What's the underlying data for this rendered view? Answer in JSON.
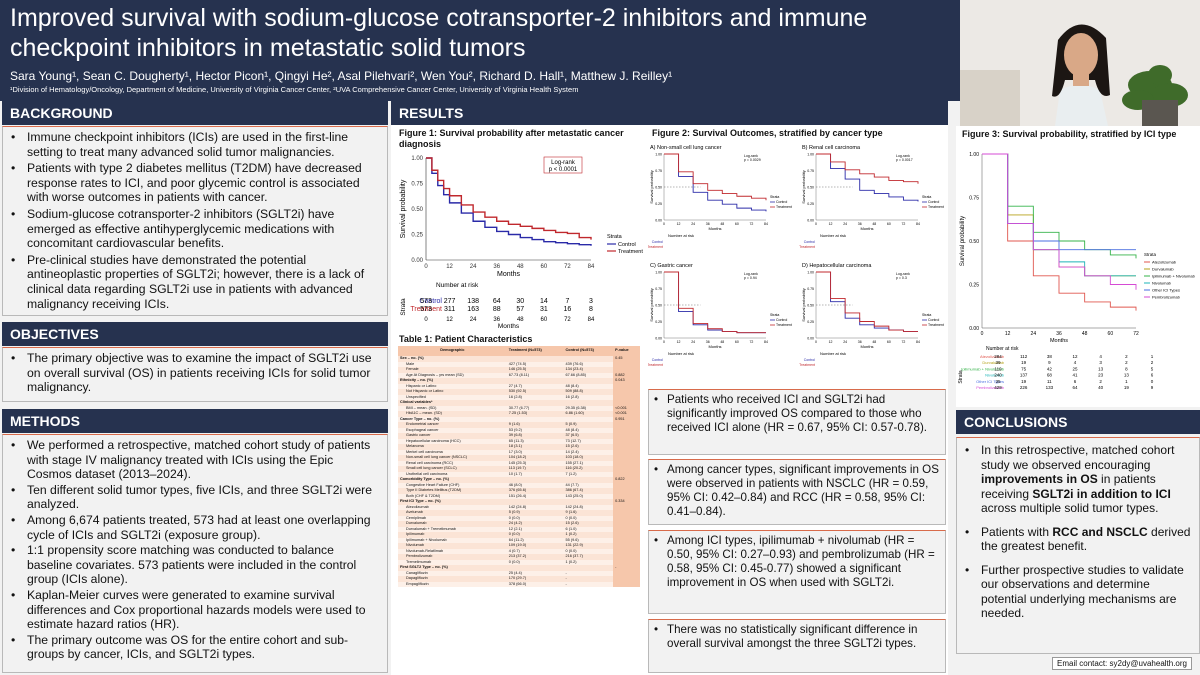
{
  "header": {
    "title": "Improved survival with sodium-glucose cotransporter-2 inhibitors and immune checkpoint inhibitors in metastatic solid tumors",
    "authors": "Sara Young¹, Sean C. Dougherty¹, Hector Picon¹, Qingyi He², Asal Pilehvari², Wen You², Richard D. Hall¹, Matthew J. Reilley¹",
    "affiliations": "¹Division of Hematology/Oncology, Department of Medicine, University of Virginia Cancer Center, ²UVA Comprehensive Cancer Center, University of Virginia Health System"
  },
  "sections": {
    "background": "BACKGROUND",
    "objectives": "OBJECTIVES",
    "methods": "METHODS",
    "results": "RESULTS",
    "conclusions": "CONCLUSIONS"
  },
  "background_items": [
    "Immune checkpoint inhibitors (ICIs) are used in the first-line setting to treat many advanced solid tumor malignancies.",
    "Patients with type 2 diabetes mellitus (T2DM) have decreased response rates to ICI, and poor glycemic control is associated with worse outcomes in patients with cancer.",
    "Sodium-glucose cotransporter-2 inhibitors (SGLT2i) have emerged as effective antihyperglycemic medications with concomitant cardiovascular benefits.",
    "Pre-clinical studies have demonstrated the potential antineoplastic properties of SGLT2i; however, there is a lack of clinical data regarding SGLT2i use in patients with advanced malignancy receiving ICIs."
  ],
  "objective_items": [
    "The primary objective was to examine the impact of SGLT2i use on overall survival (OS) in patients receiving ICIs for solid tumor malignancy."
  ],
  "method_items": [
    "We performed a retrospective, matched cohort study of patients with stage IV malignancy treated with ICIs using the Epic Cosmos dataset (2013–2024).",
    "Ten different solid tumor types, five ICIs, and three SGLT2i were analyzed.",
    "Among 6,674 patients treated, 573 had at least one overlapping cycle of ICIs and SGLT2i (exposure group).",
    "1:1 propensity score matching was conducted to balance baseline covariates. 573 patients were included in the control group (ICIs alone).",
    "Kaplan-Meier curves were generated to examine survival differences and Cox proportional hazards models were used to estimate hazard ratios (HR).",
    "The primary outcome was OS for the entire cohort and sub-groups by cancer, ICIs, and SGLT2i types."
  ],
  "figure1": {
    "title": "Figure 1: Survival probability after metastatic cancer diagnosis",
    "logrank": "Log-rank\np < 0.0001",
    "ylabel": "Survival probability",
    "xlabel": "Months",
    "risk_title": "Number at risk",
    "strata_label": "Strata",
    "legend_title": "Strata",
    "control_label": "Control",
    "treatment_label": "Treatment",
    "control_color": "#2a2aa8",
    "treatment_color": "#c0282d",
    "risk_control": [
      "573",
      "277",
      "138",
      "64",
      "30",
      "14",
      "7",
      "3"
    ],
    "risk_treatment": [
      "573",
      "311",
      "163",
      "88",
      "57",
      "31",
      "16",
      "8"
    ]
  },
  "chart_data": [
    {
      "type": "line",
      "title": "Figure 1: Survival probability after metastatic cancer diagnosis",
      "xlabel": "Months",
      "ylabel": "Survival probability",
      "xlim": [
        0,
        84
      ],
      "ylim": [
        0,
        1
      ],
      "x_ticks": [
        0,
        12,
        24,
        36,
        48,
        60,
        72,
        84
      ],
      "y_ticks": [
        "0.00",
        "0.25",
        "0.50",
        "0.75",
        "1.00"
      ],
      "legend": "right",
      "series": [
        {
          "name": "Control",
          "x": [
            0,
            3,
            6,
            9,
            12,
            18,
            24,
            30,
            36,
            42,
            48,
            54,
            60,
            66,
            72,
            78,
            84
          ],
          "y": [
            1,
            0.85,
            0.73,
            0.64,
            0.56,
            0.46,
            0.38,
            0.32,
            0.28,
            0.25,
            0.22,
            0.2,
            0.18,
            0.17,
            0.16,
            0.15,
            0.14
          ]
        },
        {
          "name": "Treatment",
          "x": [
            0,
            3,
            6,
            9,
            12,
            18,
            24,
            30,
            36,
            42,
            48,
            54,
            60,
            66,
            72,
            78,
            84
          ],
          "y": [
            1,
            0.88,
            0.78,
            0.7,
            0.63,
            0.54,
            0.47,
            0.42,
            0.38,
            0.35,
            0.33,
            0.31,
            0.29,
            0.27,
            0.26,
            0.22,
            0.2
          ]
        }
      ]
    },
    {
      "type": "line",
      "title": "Figure 2: Survival Outcomes, stratified by cancer type",
      "panels": [
        {
          "name": "A) Non-small cell lung cancer",
          "logrank": "Log-rank p = 0.0029",
          "control": [
            1,
            0.66,
            0.42,
            0.3,
            0.24,
            0.18,
            0.15,
            0.13
          ],
          "treatment": [
            1,
            0.73,
            0.55,
            0.45,
            0.4,
            0.36,
            0.33,
            0.3
          ]
        },
        {
          "name": "B) Renal cell carcinoma",
          "logrank": "Log-rank p = 0.0017",
          "control": [
            1,
            0.78,
            0.62,
            0.45,
            0.4,
            0.35,
            0.3,
            0.28
          ],
          "treatment": [
            1,
            0.88,
            0.76,
            0.7,
            0.65,
            0.6,
            0.58,
            0.55
          ]
        },
        {
          "name": "C) Gastric cancer",
          "logrank": "Log-rank p = 0.94",
          "control": [
            1,
            0.4,
            0.2,
            0.12,
            0.1,
            0.08,
            0.08,
            0.08
          ],
          "treatment": [
            1,
            0.45,
            0.22,
            0.14,
            0.1,
            0.08,
            0.08,
            0.08
          ]
        },
        {
          "name": "D) Hepatocellular carcinoma",
          "logrank": "Log-rank p = 0.3",
          "control": [
            1,
            0.55,
            0.3,
            0.2,
            0.15,
            0.12,
            0.1,
            0.1
          ],
          "treatment": [
            1,
            0.6,
            0.38,
            0.25,
            0.18,
            0.12,
            0.1,
            0.1
          ]
        }
      ],
      "x": [
        0,
        12,
        24,
        36,
        48,
        60,
        72,
        84
      ]
    },
    {
      "type": "line",
      "title": "Figure 3: Survival probability, stratified by ICI type",
      "xlabel": "Months",
      "ylabel": "Survival probability",
      "x": [
        0,
        12,
        24,
        36,
        48,
        60,
        72
      ],
      "series": [
        {
          "name": "Atezolizumab",
          "color": "#e0574f",
          "values": [
            1,
            0.5,
            0.3,
            0.2,
            0.15,
            0.12,
            0.1
          ]
        },
        {
          "name": "Durvalumab",
          "color": "#b6a21a",
          "values": [
            1,
            0.65,
            0.45,
            0.35,
            0.3,
            0.3,
            0.3
          ]
        },
        {
          "name": "Ipilimumab + Nivolumab",
          "color": "#35b34a",
          "values": [
            1,
            0.7,
            0.55,
            0.5,
            0.45,
            0.42,
            0.4
          ]
        },
        {
          "name": "Nivolumab",
          "color": "#1eb5b8",
          "values": [
            1,
            0.6,
            0.45,
            0.38,
            0.3,
            0.3,
            0.3
          ]
        },
        {
          "name": "Other ICI Types",
          "color": "#4a6ee0",
          "values": [
            1,
            0.6,
            0.5,
            0.45,
            0.45,
            0.45,
            0.45
          ]
        },
        {
          "name": "Pembrolizumab",
          "color": "#d54bd4",
          "values": [
            1,
            0.6,
            0.45,
            0.35,
            0.3,
            0.25,
            0.22
          ]
        }
      ]
    }
  ],
  "figure2": {
    "title": "Figure 2: Survival Outcomes, stratified by cancer type",
    "panels": [
      {
        "name": "A) Non-small cell lung cancer",
        "logrank": "Log-rank\np = 0.0029"
      },
      {
        "name": "B) Renal cell carcinoma",
        "logrank": "Log-rank\np = 0.0017"
      },
      {
        "name": "C) Gastric cancer",
        "logrank": "Log-rank\np = 0.94"
      },
      {
        "name": "D) Hepatocellular carcinoma",
        "logrank": "Log-rank\np = 0.3"
      }
    ]
  },
  "figure3": {
    "title": "Figure 3: Survival probability, stratified by ICI type",
    "risk_rows": [
      [
        "Atezolizumab",
        "284",
        "112",
        "38",
        "12",
        "4",
        "2",
        "1"
      ],
      [
        "Durvalumab",
        "39",
        "19",
        "9",
        "4",
        "3",
        "2",
        "2"
      ],
      [
        "Ipilimumab + Nivolumab",
        "119",
        "75",
        "42",
        "25",
        "13",
        "8",
        "5"
      ],
      [
        "Nivolumab",
        "240",
        "137",
        "68",
        "41",
        "23",
        "13",
        "6"
      ],
      [
        "Other ICI Types",
        "35",
        "19",
        "11",
        "6",
        "2",
        "1",
        "0"
      ],
      [
        "Pembrolizumab",
        "429",
        "226",
        "133",
        "64",
        "40",
        "19",
        "9"
      ]
    ]
  },
  "table1": {
    "title": "Table 1: Patient Characteristics",
    "headers": [
      "Demographic",
      "Treatment (N=573)",
      "Control (N=573)",
      "P-value"
    ],
    "rows": [
      [
        "Sex – no. (%)",
        "",
        "",
        "0.45"
      ],
      [
        "Male",
        "427 (74.5)",
        "439 (76.6)",
        ""
      ],
      [
        "Female",
        "146 (25.5)",
        "134 (23.4)",
        ""
      ],
      [
        "Age At Diagnosis – yrs mean (SD)",
        "67.73 (8.11)",
        "67.66 (8.85)",
        "0.882"
      ],
      [
        "Ethnicity – no. (%)",
        "",
        "",
        "0.043"
      ],
      [
        "Hispanic or Latino",
        "27 (4.7)",
        "48 (8.4)",
        ""
      ],
      [
        "Not Hispanic or Latino",
        "530 (92.5)",
        "509 (88.8)",
        ""
      ],
      [
        "Unspecified",
        "16 (2.8)",
        "16 (2.8)",
        ""
      ],
      [
        "Clinical variables*",
        "",
        "",
        ""
      ],
      [
        "BMI – mean. (SD)",
        "30.77 (6.77)",
        "29.35 (6.38)",
        "<0.001"
      ],
      [
        "HbA1C – mean. (SD)",
        "7.25 (1.53)",
        "6.86 (1.60)",
        "<0.001"
      ],
      [
        "Cancer Type – no. (%)",
        "",
        "",
        "0.951"
      ],
      [
        "Endometrial cancer",
        "9 (1.6)",
        "5 (0.9)",
        ""
      ],
      [
        "Esophageal cancer",
        "53 (9.2)",
        "48 (8.4)",
        ""
      ],
      [
        "Gastric cancer",
        "39 (6.8)",
        "37 (6.5)",
        ""
      ],
      [
        "Hepatocellular carcinoma (HCC)",
        "65 (11.3)",
        "73 (12.7)",
        ""
      ],
      [
        "Melanoma",
        "18 (3.1)",
        "15 (2.6)",
        ""
      ],
      [
        "Merkel cell carcinoma",
        "17 (3.0)",
        "14 (2.4)",
        ""
      ],
      [
        "Non-small cell lung cancer (NSCLC)",
        "104 (18.2)",
        "103 (18.0)",
        ""
      ],
      [
        "Renal cell carcinoma (RCC)",
        "145 (25.3)",
        "155 (27.1)",
        ""
      ],
      [
        "Small cell lung cancer (SCLC)",
        "113 (19.7)",
        "116 (20.2)",
        ""
      ],
      [
        "Urothelial cell carcinoma",
        "10 (1.7)",
        "7 (1.2)",
        ""
      ],
      [
        "Comorbidity Type – no. (%)",
        "",
        "",
        "0.822"
      ],
      [
        "Congestive Heart Failure (CHF)",
        "46 (8.0)",
        "44 (7.7)",
        ""
      ],
      [
        "Type II Diabetes Mellitus (T2DM)",
        "376 (65.6)",
        "386 (67.4)",
        ""
      ],
      [
        "Both (CHF & T2DM)",
        "151 (26.4)",
        "143 (25.0)",
        ""
      ],
      [
        "First ICI Type – no. (%)",
        "",
        "",
        "0.334"
      ],
      [
        "Atezolizumab",
        "142 (24.8)",
        "142 (24.8)",
        ""
      ],
      [
        "Avelumab",
        "5 (0.9)",
        "9 (1.6)",
        ""
      ],
      [
        "Cemiplimab",
        "0 (0.0)",
        "0 (0.0)",
        ""
      ],
      [
        "Durvalumab",
        "24 (4.2)",
        "15 (2.6)",
        ""
      ],
      [
        "Durvalumab + Tremelimumab",
        "12 (2.1)",
        "6 (1.0)",
        ""
      ],
      [
        "Ipilimumab",
        "0 (0.0)",
        "1 (0.2)",
        ""
      ],
      [
        "Ipilimumab + Nivolumab",
        "64 (11.2)",
        "55 (9.6)",
        ""
      ],
      [
        "Nivolumab",
        "109 (19.0)",
        "131 (22.9)",
        ""
      ],
      [
        "Nivolumab-Relatlimab",
        "4 (0.7)",
        "0 (0.0)",
        ""
      ],
      [
        "Pembrolizumab",
        "213 (37.2)",
        "216 (37.7)",
        ""
      ],
      [
        "Tremelimumab",
        "0 (0.0)",
        "1 (0.2)",
        ""
      ],
      [
        "First SGLT2 Type – no. (%)",
        "",
        "",
        "-"
      ],
      [
        "Canagliflozin",
        "25 (4.4)",
        "-",
        ""
      ],
      [
        "Dapagliflozin",
        "170 (29.7)",
        "-",
        ""
      ],
      [
        "Empagliflozin",
        "378 (66.0)",
        "-",
        ""
      ]
    ]
  },
  "results_items": [
    "Patients who received ICI and SGLT2i had significantly improved OS compared to those who received ICI alone (HR = 0.67, 95% CI: 0.57-0.78).",
    "Among cancer types, significant improvements in OS were observed in patients with NSCLC (HR = 0.59, 95% CI: 0.42–0.84) and RCC (HR = 0.58, 95% CI: 0.41–0.84).",
    "Among ICI types, ipilimumab + nivolumab (HR = 0.50, 95% CI: 0.27–0.93) and pembrolizumab (HR = 0.58, 95% CI: 0.45-0.77) showed a significant improvement in OS when used with SGLT2i.",
    "There was no statistically significant difference in overall survival amongst the three SGLT2i types."
  ],
  "conclusions": {
    "item1_pre": "In this retrospective, matched cohort study we observed encouraging ",
    "item1_bold1": "improvements in OS",
    "item1_mid": " in patients receiving ",
    "item1_bold2": "SGLT2i in addition to ICI",
    "item1_post": " across multiple solid tumor types.",
    "item2_pre": "Patients with ",
    "item2_bold": "RCC and NSCLC",
    "item2_post": " derived the greatest benefit.",
    "item3": "Further prospective studies to validate our observations and determine potential underlying mechanisms are needed."
  },
  "email": "Email contact: sy2dy@uvahealth.org"
}
